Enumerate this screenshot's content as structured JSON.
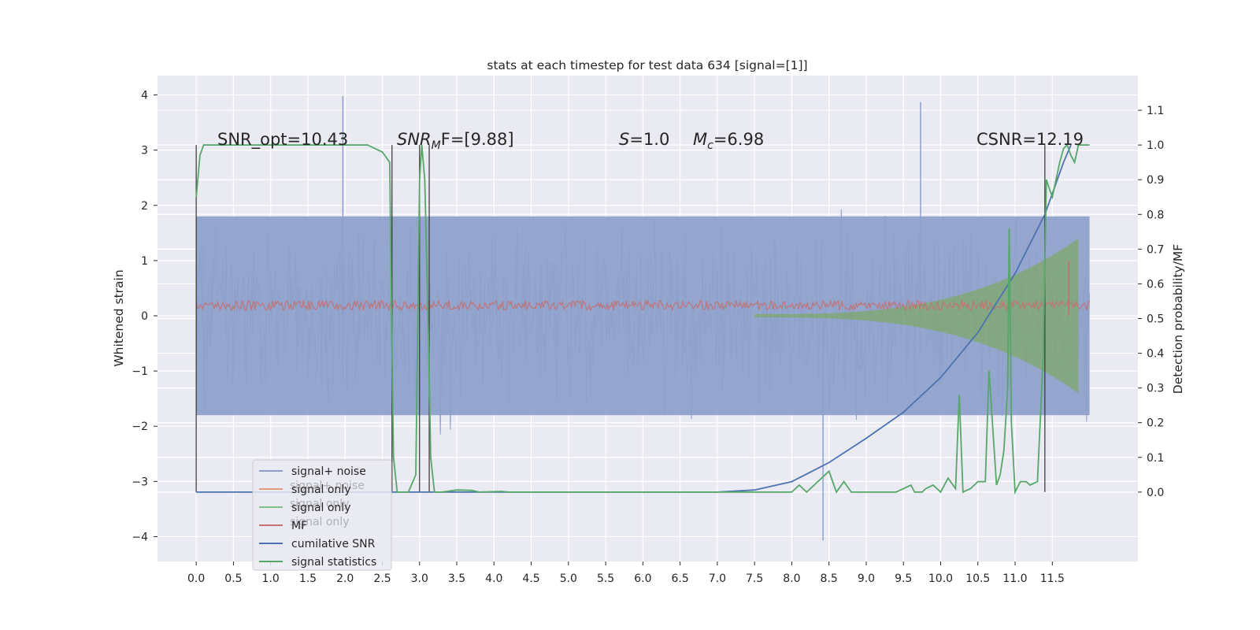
{
  "chart_data": {
    "type": "line",
    "title": "stats at each timestep for test data 634 [signal=[1]]",
    "ylabel_left": "Whitened strain",
    "ylabel_right": "Detection probability/MF",
    "xlim": [
      -0.52,
      12.65
    ],
    "ylim_left": [
      -4.45,
      4.35
    ],
    "ylim_right": [
      -0.2,
      1.2
    ],
    "x_ticks": [
      "0.0",
      "0.5",
      "1.0",
      "1.5",
      "2.0",
      "2.5",
      "3.0",
      "3.5",
      "4.0",
      "4.5",
      "5.0",
      "5.5",
      "6.0",
      "6.5",
      "7.0",
      "7.5",
      "8.0",
      "8.5",
      "9.0",
      "9.5",
      "10.0",
      "10.5",
      "11.0",
      "11.5"
    ],
    "y_ticks_left": [
      "4",
      "3",
      "2",
      "1",
      "0",
      "−1",
      "−2",
      "−3",
      "−4"
    ],
    "y_ticks_right": [
      "1.1",
      "1.0",
      "0.9",
      "0.8",
      "0.7",
      "0.6",
      "0.5",
      "0.4",
      "0.3",
      "0.2",
      "0.1",
      "0.0"
    ],
    "grid": true,
    "legend_position": "lower-left",
    "annotations": {
      "snr_opt": "SNR_opt=10.43",
      "snr_mf_main": "SNR",
      "snr_mf_sub": "M",
      "snr_mf_rest": "F=[9.88]",
      "s_italic": "S",
      "s_value": "=1.0",
      "mc_italic": "M",
      "mc_sub": "c",
      "mc_value": "=6.98",
      "csnr": "CSNR=12.19"
    },
    "legend": [
      {
        "label": "signal+ noise",
        "color": "#8da0cb"
      },
      {
        "label": "signal only",
        "color": "#dd9d7c"
      },
      {
        "label": "signal only",
        "color": "#7fbf86"
      },
      {
        "label": "MF",
        "color": "#c47070"
      },
      {
        "label": "cumilative SNR",
        "color": "#4c72b0"
      },
      {
        "label": "signal statistics",
        "color": "#55a868"
      }
    ],
    "legend_ghost_labels": [
      "signal+ noise",
      "signal only",
      "signal only"
    ],
    "vertical_markers_x": [
      0.0,
      2.63,
      3.0,
      3.13,
      11.4
    ],
    "signal_plus_noise": {
      "x_range": [
        0.0,
        12.0
      ],
      "band": [
        -1.8,
        1.8
      ],
      "extreme_peaks": [
        [
          1.97,
          3.98
        ],
        [
          9.73,
          3.87
        ],
        [
          8.42,
          -4.07
        ]
      ]
    },
    "signal_only": {
      "x_range": [
        7.5,
        11.85
      ],
      "envelope_start": 0.03,
      "envelope_end": 1.4
    },
    "mf": {
      "x_range": [
        0.0,
        12.0
      ],
      "band": [
        0.0,
        0.28
      ],
      "peak": [
        11.72,
        1.0
      ]
    },
    "cumulative_snr": {
      "axis": "right",
      "x": [
        0.0,
        7.0,
        7.5,
        8.0,
        8.5,
        9.0,
        9.5,
        10.0,
        10.5,
        11.0,
        11.4,
        11.65,
        11.75
      ],
      "y": [
        0.0,
        0.0,
        0.006,
        0.03,
        0.085,
        0.155,
        0.23,
        0.33,
        0.46,
        0.63,
        0.8,
        0.95,
        1.0
      ]
    },
    "signal_statistics": {
      "axis": "right",
      "x": [
        0.0,
        0.05,
        0.1,
        0.2,
        2.3,
        2.5,
        2.6,
        2.63,
        2.65,
        2.7,
        2.85,
        2.95,
        3.0,
        3.03,
        3.07,
        3.12,
        3.15,
        3.2,
        3.3,
        3.5,
        3.7,
        3.8,
        4.1,
        4.2,
        8.0,
        8.1,
        8.2,
        8.5,
        8.6,
        8.7,
        8.8,
        9.0,
        9.4,
        9.6,
        9.65,
        9.75,
        9.8,
        9.9,
        10.0,
        10.1,
        10.2,
        10.25,
        10.3,
        10.4,
        10.5,
        10.6,
        10.65,
        10.75,
        10.8,
        10.85,
        10.9,
        10.92,
        10.95,
        11.0,
        11.07,
        11.15,
        11.2,
        11.3,
        11.38,
        11.42,
        11.45,
        11.5,
        11.55,
        11.6,
        11.65,
        11.7,
        11.75,
        11.8,
        11.85,
        11.9,
        12.0
      ],
      "y": [
        0.85,
        0.97,
        1.0,
        1.0,
        1.0,
        0.98,
        0.95,
        0.4,
        0.1,
        0.0,
        0.0,
        0.05,
        0.9,
        1.0,
        0.9,
        0.45,
        0.1,
        0.0,
        0.0,
        0.006,
        0.005,
        0.0,
        0.002,
        0.0,
        0.0,
        0.02,
        0.0,
        0.06,
        0.0,
        0.03,
        0.0,
        0.0,
        0.0,
        0.02,
        0.0,
        0.0,
        0.01,
        0.02,
        0.0,
        0.04,
        0.01,
        0.28,
        0.0,
        0.01,
        0.03,
        0.03,
        0.35,
        0.02,
        0.05,
        0.12,
        0.3,
        0.76,
        0.2,
        0.0,
        0.03,
        0.03,
        0.02,
        0.03,
        0.4,
        0.9,
        0.88,
        0.85,
        0.9,
        0.95,
        0.99,
        1.0,
        0.97,
        0.95,
        1.0,
        1.0,
        1.0
      ]
    }
  }
}
